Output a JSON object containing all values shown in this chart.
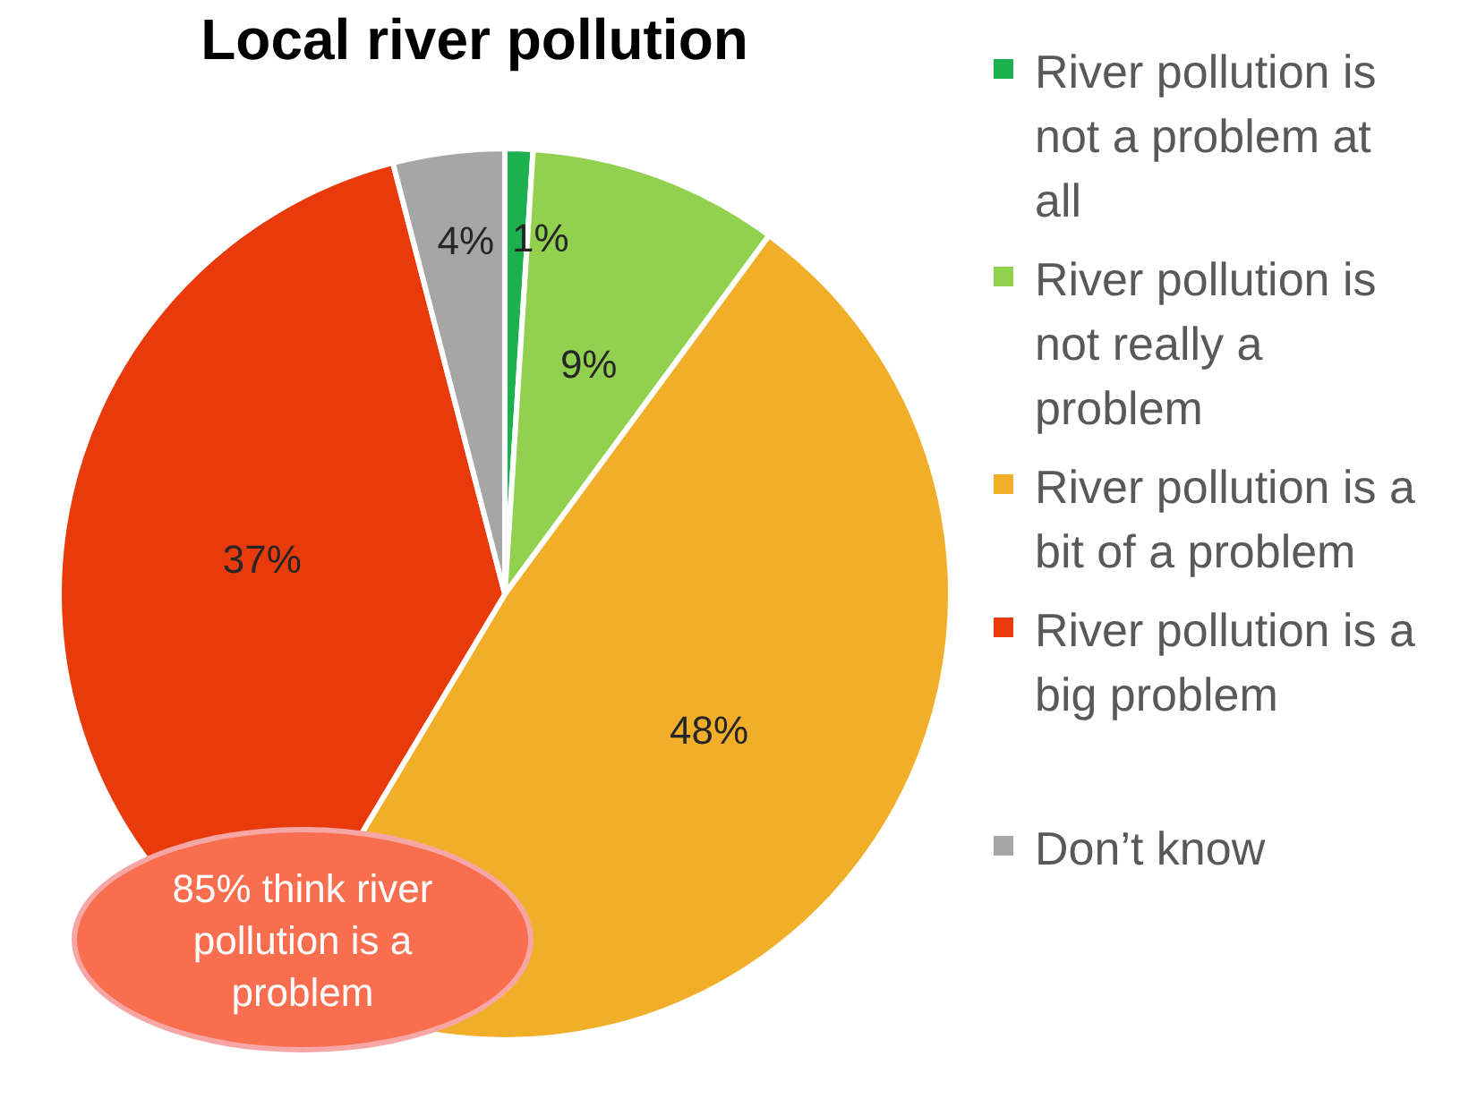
{
  "chart_data": {
    "type": "pie",
    "title": "Local river pollution",
    "categories": [
      "River pollution is not a problem at all",
      "River pollution is not really a problem",
      "River pollution is a bit of a problem",
      "River pollution is a big problem",
      "Don’t know"
    ],
    "values": [
      1,
      9,
      48,
      37,
      4
    ],
    "colors": [
      "#1db04f",
      "#92d050",
      "#f0ae29",
      "#e93a0c",
      "#a6a6a6"
    ],
    "value_labels": [
      "1%",
      "9%",
      "48%",
      "37%",
      "4%"
    ],
    "legend": "right",
    "annotations": [
      "85% think river pollution is a problem"
    ]
  }
}
